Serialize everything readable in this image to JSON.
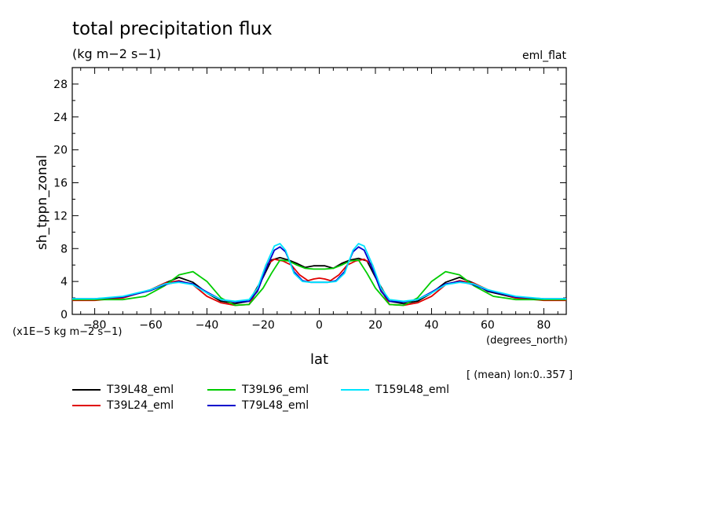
{
  "header": {
    "title": "total precipitation flux",
    "units": "(kg m−2 s−1)",
    "tag": "eml_flat"
  },
  "footer": {
    "scale_note": "(x1E−5 kg m−2 s−1)",
    "x_units": "(degrees_north)",
    "mean_note": "[ (mean) lon:0..357 ]"
  },
  "chart_data": {
    "type": "line",
    "title": "total precipitation flux",
    "xlabel": "lat",
    "ylabel": "sh_tppn_zonal",
    "xlim": [
      -88,
      88
    ],
    "ylim": [
      0,
      30
    ],
    "xticks": [
      -80,
      -60,
      -40,
      -20,
      0,
      20,
      40,
      60,
      80
    ],
    "xtick_labels": [
      "−80",
      "−60",
      "−40",
      "−20",
      "0",
      "20",
      "40",
      "60",
      "80"
    ],
    "yticks": [
      4,
      8,
      12,
      16,
      20,
      24,
      28
    ],
    "ytick_labels": [
      "4",
      "8",
      "12",
      "16",
      "20",
      "24",
      "28"
    ],
    "ytick_zero_label": "0",
    "legend_position": "bottom",
    "series": [
      {
        "name": "T39L48_eml",
        "color": "#000000",
        "x": [
          -88,
          -80,
          -70,
          -60,
          -55,
          -50,
          -45,
          -40,
          -35,
          -30,
          -25,
          -20,
          -17,
          -14,
          -11,
          -8,
          -5,
          -2,
          0,
          2,
          5,
          8,
          11,
          14,
          17,
          20,
          25,
          30,
          35,
          40,
          45,
          50,
          55,
          60,
          70,
          80,
          88
        ],
        "y": [
          1.8,
          1.8,
          2.1,
          3.0,
          3.8,
          4.5,
          3.9,
          2.6,
          1.6,
          1.3,
          1.6,
          4.5,
          6.6,
          6.9,
          6.6,
          6.2,
          5.7,
          5.9,
          5.9,
          5.9,
          5.6,
          6.2,
          6.6,
          6.8,
          6.5,
          4.5,
          1.6,
          1.3,
          1.6,
          2.6,
          3.9,
          4.5,
          3.8,
          2.8,
          2.0,
          1.8,
          1.8
        ]
      },
      {
        "name": "T39L24_eml",
        "color": "#e00000",
        "x": [
          -88,
          -80,
          -70,
          -60,
          -55,
          -50,
          -45,
          -40,
          -35,
          -30,
          -25,
          -22,
          -19,
          -16,
          -13,
          -10,
          -7,
          -4,
          -2,
          0,
          2,
          4,
          7,
          10,
          13,
          16,
          19,
          22,
          25,
          30,
          35,
          40,
          45,
          50,
          55,
          60,
          70,
          80,
          88
        ],
        "y": [
          1.7,
          1.7,
          2.0,
          3.0,
          3.8,
          4.1,
          3.6,
          2.2,
          1.4,
          1.1,
          1.2,
          3.0,
          6.0,
          6.7,
          6.5,
          6.0,
          4.8,
          4.1,
          4.3,
          4.4,
          4.3,
          4.1,
          4.8,
          6.0,
          6.5,
          6.7,
          6.0,
          3.0,
          1.2,
          1.1,
          1.4,
          2.2,
          3.6,
          4.1,
          3.8,
          3.0,
          2.0,
          1.7,
          1.7
        ]
      },
      {
        "name": "T39L96_eml",
        "color": "#00cc00",
        "x": [
          -88,
          -80,
          -70,
          -62,
          -55,
          -50,
          -45,
          -40,
          -35,
          -30,
          -25,
          -20,
          -17,
          -14,
          -11,
          -8,
          -5,
          -2,
          0,
          2,
          5,
          8,
          11,
          14,
          17,
          20,
          25,
          30,
          35,
          40,
          45,
          50,
          55,
          62,
          70,
          80,
          88
        ],
        "y": [
          1.8,
          1.8,
          1.8,
          2.2,
          3.5,
          4.8,
          5.2,
          4.0,
          2.0,
          1.1,
          1.2,
          3.2,
          5.0,
          6.6,
          6.5,
          6.0,
          5.6,
          5.5,
          5.5,
          5.5,
          5.6,
          6.0,
          6.5,
          6.6,
          5.0,
          3.2,
          1.2,
          1.1,
          2.0,
          4.0,
          5.2,
          4.8,
          3.5,
          2.2,
          1.8,
          1.8,
          1.8
        ]
      },
      {
        "name": "T79L48_eml",
        "color": "#0000cc",
        "x": [
          -88,
          -80,
          -70,
          -60,
          -55,
          -50,
          -45,
          -40,
          -35,
          -30,
          -25,
          -22,
          -19,
          -16,
          -14,
          -12,
          -9,
          -6,
          -3,
          0,
          3,
          6,
          9,
          12,
          14,
          16,
          19,
          22,
          25,
          30,
          35,
          40,
          45,
          50,
          55,
          60,
          70,
          80,
          88
        ],
        "y": [
          1.9,
          1.9,
          2.1,
          2.9,
          3.6,
          4.0,
          3.7,
          2.7,
          1.8,
          1.5,
          1.6,
          2.8,
          5.5,
          7.8,
          8.2,
          7.6,
          5.2,
          4.1,
          3.9,
          3.9,
          3.9,
          4.1,
          5.2,
          7.6,
          8.2,
          7.8,
          5.5,
          2.8,
          1.6,
          1.5,
          1.8,
          2.7,
          3.7,
          4.0,
          3.6,
          2.9,
          2.1,
          1.9,
          1.9
        ]
      },
      {
        "name": "T159L48_eml",
        "color": "#00e5ff",
        "x": [
          -88,
          -80,
          -70,
          -60,
          -55,
          -50,
          -45,
          -40,
          -35,
          -30,
          -25,
          -22,
          -19,
          -16,
          -14,
          -12,
          -9,
          -6,
          -3,
          0,
          3,
          6,
          9,
          12,
          14,
          16,
          19,
          22,
          25,
          30,
          35,
          40,
          45,
          50,
          55,
          60,
          70,
          80,
          88
        ],
        "y": [
          1.9,
          1.9,
          2.2,
          3.0,
          3.7,
          3.9,
          3.6,
          2.6,
          1.8,
          1.6,
          1.8,
          3.2,
          6.0,
          8.3,
          8.6,
          7.8,
          5.0,
          4.0,
          3.9,
          3.9,
          3.9,
          4.0,
          5.0,
          7.8,
          8.6,
          8.3,
          6.0,
          3.2,
          1.8,
          1.6,
          1.8,
          2.6,
          3.6,
          3.9,
          3.7,
          3.0,
          2.2,
          1.9,
          1.9
        ]
      }
    ]
  }
}
